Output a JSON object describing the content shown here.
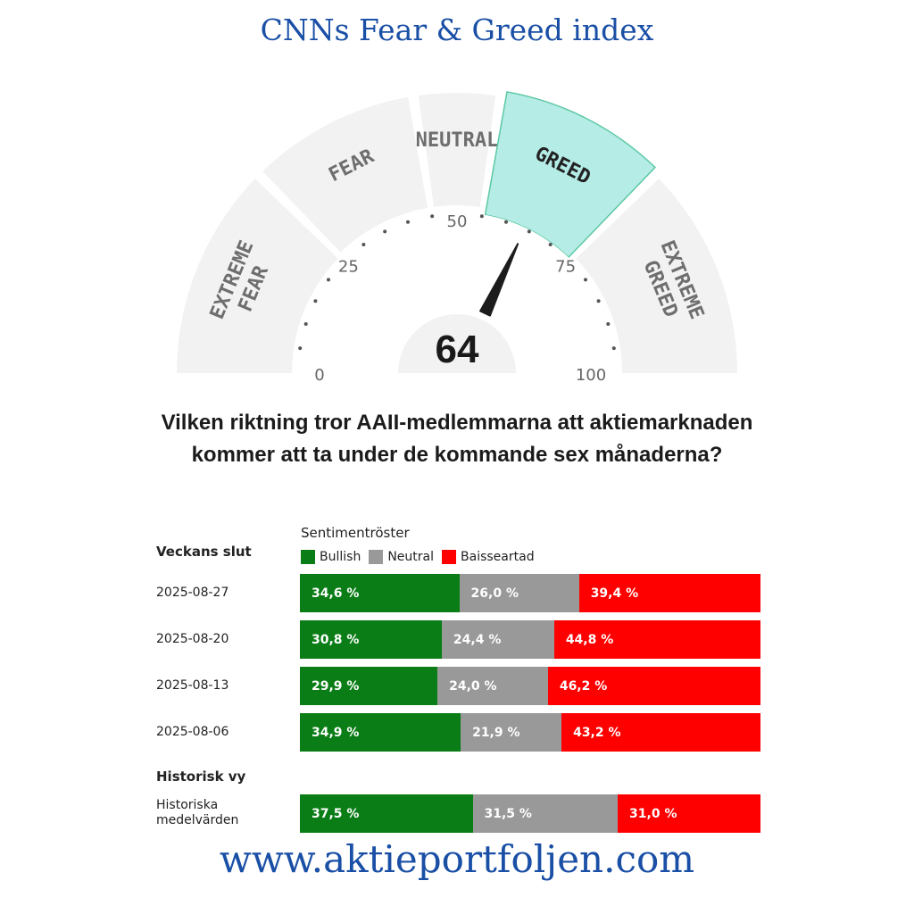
{
  "title": "CNNs Fear & Greed index",
  "gauge": {
    "value": 64,
    "active_zone": "GREED",
    "zones": [
      {
        "label": "EXTREME FEAR",
        "line1": "EXTREME",
        "line2": "FEAR",
        "from": 0,
        "to": 25
      },
      {
        "label": "FEAR",
        "line1": "FEAR",
        "line2": "",
        "from": 25,
        "to": 45
      },
      {
        "label": "NEUTRAL",
        "line1": "NEUTRAL",
        "line2": "",
        "from": 45,
        "to": 55
      },
      {
        "label": "GREED",
        "line1": "GREED",
        "line2": "",
        "from": 55,
        "to": 75
      },
      {
        "label": "EXTREME GREED",
        "line1": "EXTREME",
        "line2": "GREED",
        "from": 75,
        "to": 100
      }
    ],
    "ticks": [
      "0",
      "25",
      "50",
      "75",
      "100"
    ],
    "colors": {
      "zone": "#f2f2f2",
      "active": "#b5ece6",
      "active_border": "#5cc8a4",
      "needle": "#1c1c1c",
      "label": "#6e6e6e",
      "active_label": "#222222"
    }
  },
  "question": "Vilken riktning tror AAII-medlemmarna att aktiemarknaden kommer att ta under de kommande sex månaderna?",
  "legend": {
    "title": "Sentimentröster",
    "items": [
      {
        "label": "Bullish",
        "color": "#0a7d16"
      },
      {
        "label": "Neutral",
        "color": "#999999"
      },
      {
        "label": "Baisseartad",
        "color": "#ff0000"
      }
    ]
  },
  "table": {
    "week_header": "Veckans slut",
    "history_header": "Historisk vy"
  },
  "chart_data": {
    "type": "bar",
    "orientation": "horizontal",
    "stacked": true,
    "unit": "%",
    "categories": [
      "2025-08-27",
      "2025-08-20",
      "2025-08-13",
      "2025-08-06",
      "Historiska medelvärden"
    ],
    "series": [
      {
        "name": "Bullish",
        "color": "#0a7d16",
        "values": [
          34.6,
          30.8,
          29.9,
          34.9,
          37.5
        ],
        "labels": [
          "34,6 %",
          "30,8 %",
          "29,9 %",
          "34,9 %",
          "37,5 %"
        ]
      },
      {
        "name": "Neutral",
        "color": "#999999",
        "values": [
          26.0,
          24.4,
          24.0,
          21.9,
          31.5
        ],
        "labels": [
          "26,0 %",
          "24,4 %",
          "24,0 %",
          "21,9 %",
          "31,5 %"
        ]
      },
      {
        "name": "Baisseartad",
        "color": "#ff0000",
        "values": [
          39.4,
          44.8,
          46.2,
          43.2,
          31.0
        ],
        "labels": [
          "39,4 %",
          "44,8 %",
          "46,2 %",
          "43,2 %",
          "31,0 %"
        ]
      }
    ]
  },
  "history_label_lines": [
    "Historiska",
    "medelvärden"
  ],
  "footer": "www.aktieportfoljen.com"
}
